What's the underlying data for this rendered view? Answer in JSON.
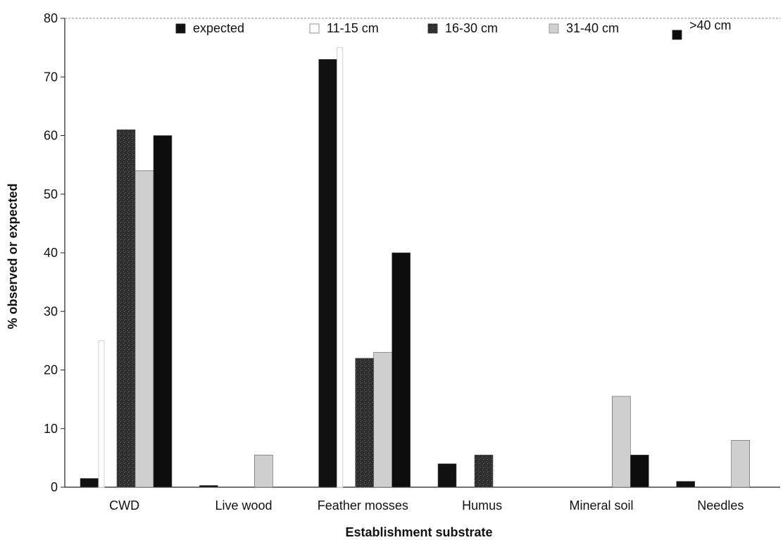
{
  "chart_data": {
    "type": "bar",
    "xlabel": "Establishment substrate",
    "ylabel": "% observed or expected",
    "ylim": [
      0,
      80
    ],
    "yticks": [
      0,
      10,
      20,
      30,
      40,
      50,
      60,
      70,
      80
    ],
    "grid": false,
    "legend_position": "top",
    "categories": [
      "CWD",
      "Live wood",
      "Feather mosses",
      "Humus",
      "Mineral soil",
      "Needles"
    ],
    "series": [
      {
        "name": "expected",
        "color": "#111111",
        "values": [
          1.5,
          0.3,
          73,
          4,
          0,
          1
        ]
      },
      {
        "name": "11-15 cm",
        "color": "#ffffff",
        "values": [
          25,
          0,
          75,
          0,
          0,
          0
        ]
      },
      {
        "name": "16-30 cm",
        "color": "#3a3a3a",
        "values": [
          61,
          0,
          22,
          5.5,
          0,
          0
        ]
      },
      {
        "name": "31-40 cm",
        "color": "#cfcfcf",
        "values": [
          54,
          5.5,
          23,
          0,
          15.5,
          8
        ]
      },
      {
        "name": ">40 cm",
        "color": "#0d0d0d",
        "values": [
          60,
          0,
          40,
          0,
          5.5,
          0
        ]
      }
    ]
  }
}
